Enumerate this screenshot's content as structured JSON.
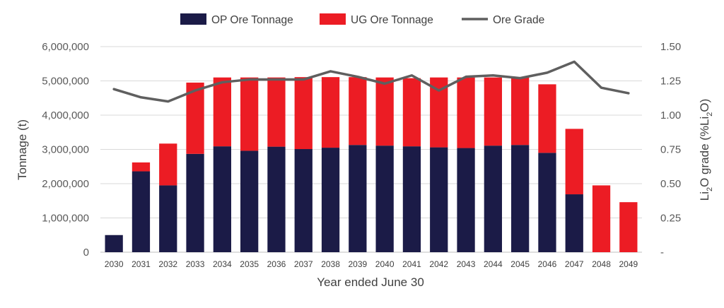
{
  "chart_data": {
    "type": "bar",
    "stacked": true,
    "categories": [
      "2030",
      "2031",
      "2032",
      "2033",
      "2034",
      "2035",
      "2036",
      "2037",
      "2038",
      "2039",
      "2040",
      "2041",
      "2042",
      "2043",
      "2044",
      "2045",
      "2046",
      "2047",
      "2048",
      "2049"
    ],
    "series": [
      {
        "name": "OP Ore Tonnage",
        "color": "#1b1b47",
        "type": "bar",
        "axis": "left",
        "values": [
          500000,
          2360000,
          1950000,
          2870000,
          3090000,
          2960000,
          3080000,
          3010000,
          3050000,
          3130000,
          3110000,
          3090000,
          3060000,
          3040000,
          3110000,
          3130000,
          2900000,
          1690000,
          0,
          0
        ]
      },
      {
        "name": "UG Ore Tonnage",
        "color": "#ec1c24",
        "type": "bar",
        "axis": "left",
        "values": [
          0,
          260000,
          1220000,
          2080000,
          2010000,
          2140000,
          2020000,
          2100000,
          2060000,
          1980000,
          1990000,
          1990000,
          2040000,
          2060000,
          1990000,
          1980000,
          2000000,
          1910000,
          1950000,
          1460000
        ]
      },
      {
        "name": "Ore Grade",
        "color": "#5f5f5f",
        "type": "line",
        "axis": "right",
        "values": [
          1.19,
          1.13,
          1.1,
          1.18,
          1.24,
          1.26,
          1.26,
          1.26,
          1.32,
          1.28,
          1.23,
          1.29,
          1.18,
          1.28,
          1.29,
          1.27,
          1.31,
          1.39,
          1.2,
          1.16
        ]
      }
    ],
    "y_left": {
      "label": "Tonnage (t)",
      "range": [
        0,
        6000000
      ],
      "ticks": [
        0,
        1000000,
        2000000,
        3000000,
        4000000,
        5000000,
        6000000
      ],
      "tick_labels": [
        "0",
        "1,000,000",
        "2,000,000",
        "3,000,000",
        "4,000,000",
        "5,000,000",
        "6,000,000"
      ]
    },
    "y_right": {
      "label_parts": [
        "Li",
        "2",
        "O grade (%Li",
        "2",
        "O)"
      ],
      "range": [
        0,
        1.5
      ],
      "ticks": [
        0,
        0.25,
        0.5,
        0.75,
        1.0,
        1.25,
        1.5
      ],
      "tick_labels": [
        "-",
        "0.25",
        "0.50",
        "0.75",
        "1.00",
        "1.25",
        "1.50"
      ]
    },
    "xlabel": "Year ended June 30",
    "legend_position": "top-center",
    "gridlines": true
  }
}
